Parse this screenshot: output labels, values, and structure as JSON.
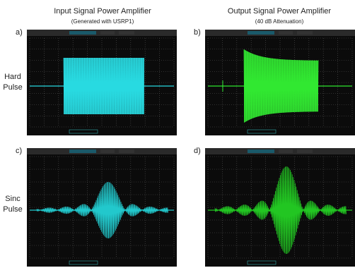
{
  "header": {
    "left_title": "Input Signal Power Amplifier",
    "left_subtitle": "(Generated with USRP1)",
    "right_title": "Output Signal Power Amplifier",
    "right_subtitle": "(40 dB Attenuation)"
  },
  "rows": [
    {
      "label": "Hard Pulse"
    },
    {
      "label": "Sinc Pulse"
    }
  ],
  "panels": [
    {
      "tag": "a)"
    },
    {
      "tag": "b)"
    },
    {
      "tag": "c)"
    },
    {
      "tag": "d)"
    }
  ]
}
